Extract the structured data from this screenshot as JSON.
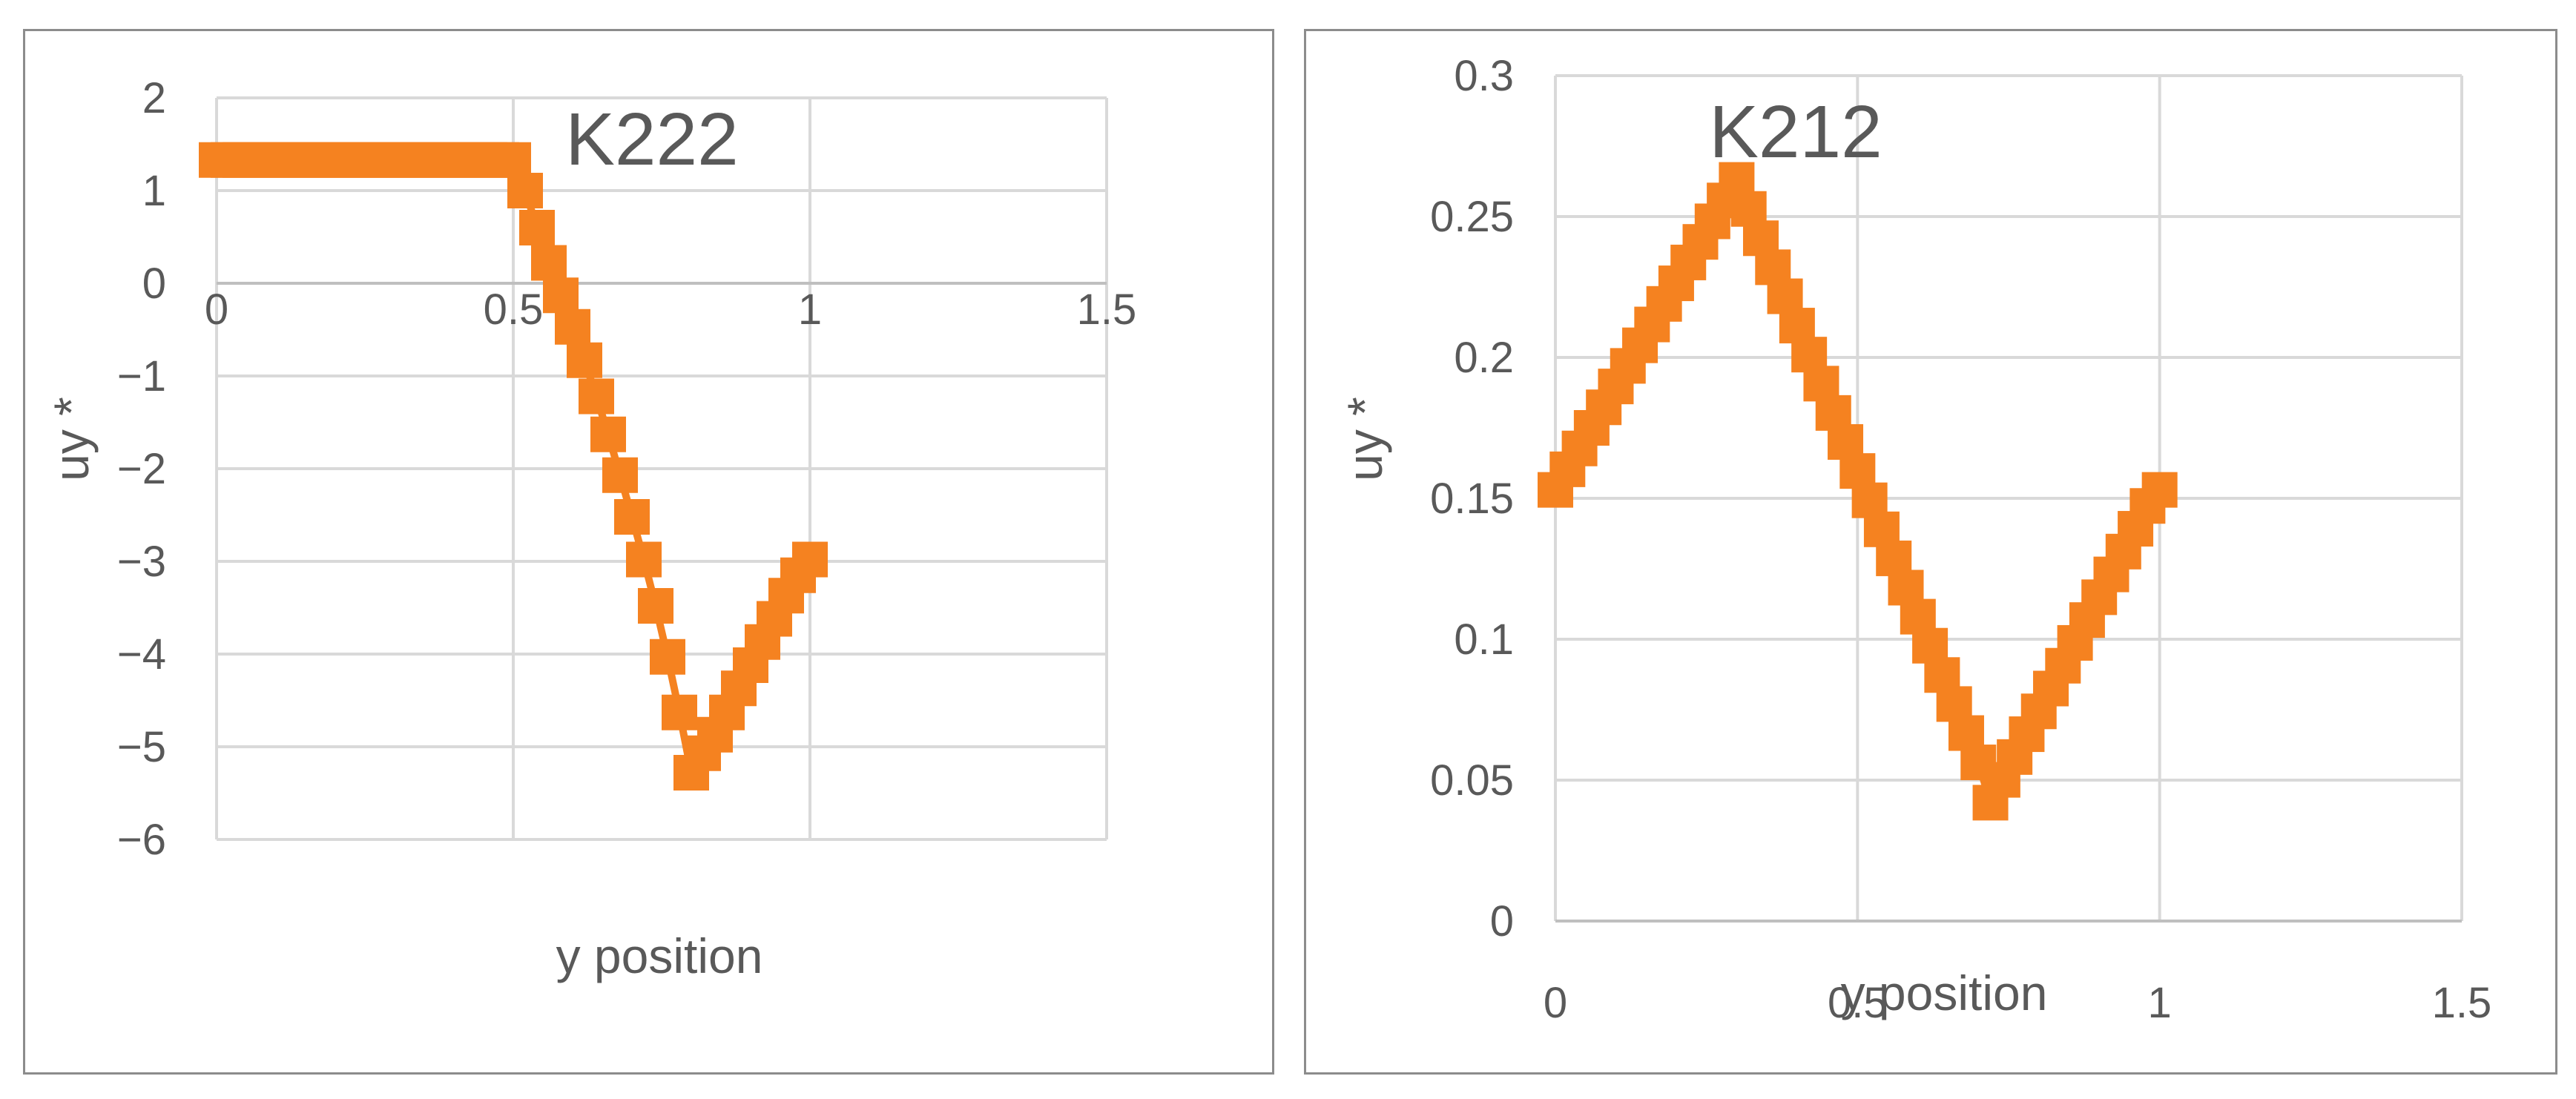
{
  "chart_data": [
    {
      "type": "line",
      "title": "K222",
      "xlabel": "y position",
      "ylabel": "uy *",
      "xlim": [
        0,
        1.5
      ],
      "ylim": [
        -6,
        2
      ],
      "xticks": [
        "0",
        "0.5",
        "1",
        "1.5"
      ],
      "yticks": [
        "2",
        "1",
        "0",
        "−1",
        "−2",
        "−3",
        "−4",
        "−5",
        "−6"
      ],
      "grid": true,
      "marker": "square",
      "color": "#f58220",
      "x": [
        0,
        0.02,
        0.04,
        0.06,
        0.08,
        0.1,
        0.12,
        0.14,
        0.16,
        0.18,
        0.2,
        0.22,
        0.24,
        0.26,
        0.28,
        0.3,
        0.32,
        0.34,
        0.36,
        0.38,
        0.4,
        0.42,
        0.44,
        0.46,
        0.48,
        0.5,
        0.52,
        0.54,
        0.56,
        0.58,
        0.6,
        0.62,
        0.64,
        0.66,
        0.68,
        0.7,
        0.72,
        0.74,
        0.76,
        0.78,
        0.8,
        0.82,
        0.84,
        0.86,
        0.88,
        0.9,
        0.92,
        0.94,
        0.96,
        0.98,
        1.0
      ],
      "y": [
        1.33,
        1.33,
        1.33,
        1.33,
        1.33,
        1.33,
        1.33,
        1.33,
        1.33,
        1.33,
        1.33,
        1.33,
        1.33,
        1.33,
        1.33,
        1.33,
        1.33,
        1.33,
        1.33,
        1.33,
        1.33,
        1.33,
        1.33,
        1.33,
        1.33,
        1.33,
        1.0,
        0.6,
        0.22,
        -0.13,
        -0.47,
        -0.83,
        -1.22,
        -1.63,
        -2.07,
        -2.52,
        -2.98,
        -3.48,
        -4.03,
        -4.63,
        -5.28,
        -5.07,
        -4.87,
        -4.63,
        -4.37,
        -4.12,
        -3.87,
        -3.62,
        -3.37,
        -3.15,
        -2.98
      ]
    },
    {
      "type": "line",
      "title": "K212",
      "xlabel": "y position",
      "ylabel": "uy *",
      "xlim": [
        0,
        1.5
      ],
      "ylim": [
        0,
        0.3
      ],
      "xticks": [
        "0",
        "0.5",
        "1",
        "1.5"
      ],
      "yticks": [
        "0.3",
        "0.25",
        "0.2",
        "0.15",
        "0.1",
        "0.05",
        "0"
      ],
      "grid": true,
      "marker": "square",
      "color": "#f58220",
      "x": [
        0,
        0.02,
        0.04,
        0.06,
        0.08,
        0.1,
        0.12,
        0.14,
        0.16,
        0.18,
        0.2,
        0.22,
        0.24,
        0.26,
        0.28,
        0.3,
        0.32,
        0.34,
        0.36,
        0.38,
        0.4,
        0.42,
        0.44,
        0.46,
        0.48,
        0.5,
        0.52,
        0.54,
        0.56,
        0.58,
        0.6,
        0.62,
        0.64,
        0.66,
        0.68,
        0.7,
        0.72,
        0.74,
        0.76,
        0.78,
        0.8,
        0.82,
        0.84,
        0.86,
        0.88,
        0.9,
        0.92,
        0.94,
        0.96,
        0.98,
        1.0
      ],
      "y": [
        0.153,
        0.1603,
        0.1677,
        0.175,
        0.1823,
        0.1897,
        0.197,
        0.2043,
        0.2117,
        0.219,
        0.2263,
        0.2337,
        0.241,
        0.2483,
        0.2557,
        0.263,
        0.2527,
        0.2423,
        0.232,
        0.2217,
        0.2113,
        0.201,
        0.1907,
        0.1803,
        0.17,
        0.1597,
        0.1493,
        0.139,
        0.1287,
        0.1183,
        0.108,
        0.0977,
        0.0873,
        0.077,
        0.0667,
        0.0563,
        0.042,
        0.0501,
        0.0582,
        0.0663,
        0.0744,
        0.0825,
        0.0906,
        0.0987,
        0.1068,
        0.1149,
        0.123,
        0.1311,
        0.1392,
        0.1473,
        0.153
      ]
    }
  ]
}
